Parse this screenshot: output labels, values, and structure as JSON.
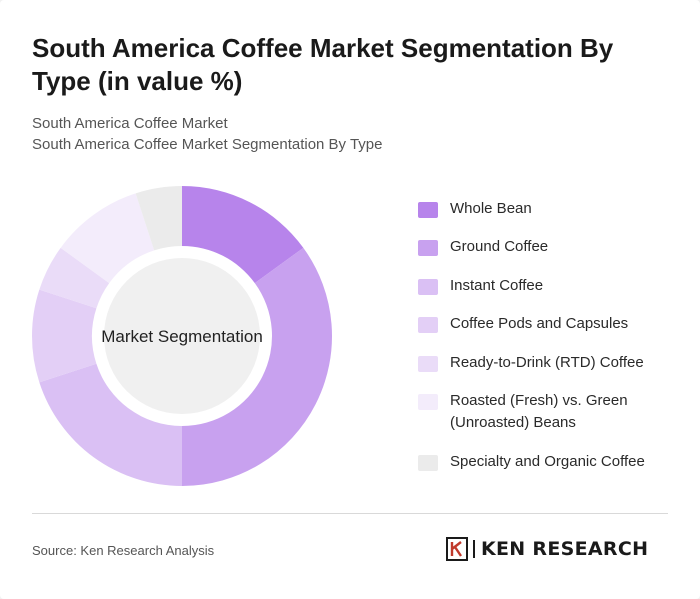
{
  "title": "South America Coffee Market Segmentation By Type (in value %)",
  "subtitle": [
    "South America Coffee Market",
    "South America Coffee Market Segmentation By Type"
  ],
  "chart_data": {
    "type": "pie",
    "variant": "donut",
    "center_label": "Market Segmentation",
    "categories": [
      "Whole Bean",
      "Ground Coffee",
      "Instant Coffee",
      "Coffee Pods and Capsules",
      "Ready-to-Drink (RTD) Coffee",
      "Roasted (Fresh) vs. Green (Unroasted) Beans",
      "Specialty and Organic Coffee"
    ],
    "values": [
      15,
      35,
      20,
      10,
      5,
      10,
      5
    ],
    "colors": [
      "#b784eb",
      "#c8a1ef",
      "#dac0f4",
      "#e3cff6",
      "#eadcf8",
      "#f3ecfb",
      "#ebebeb"
    ],
    "legend_position": "right"
  },
  "footer": {
    "source": "Source: Ken Research Analysis",
    "brand": "KEN RESEARCH"
  }
}
